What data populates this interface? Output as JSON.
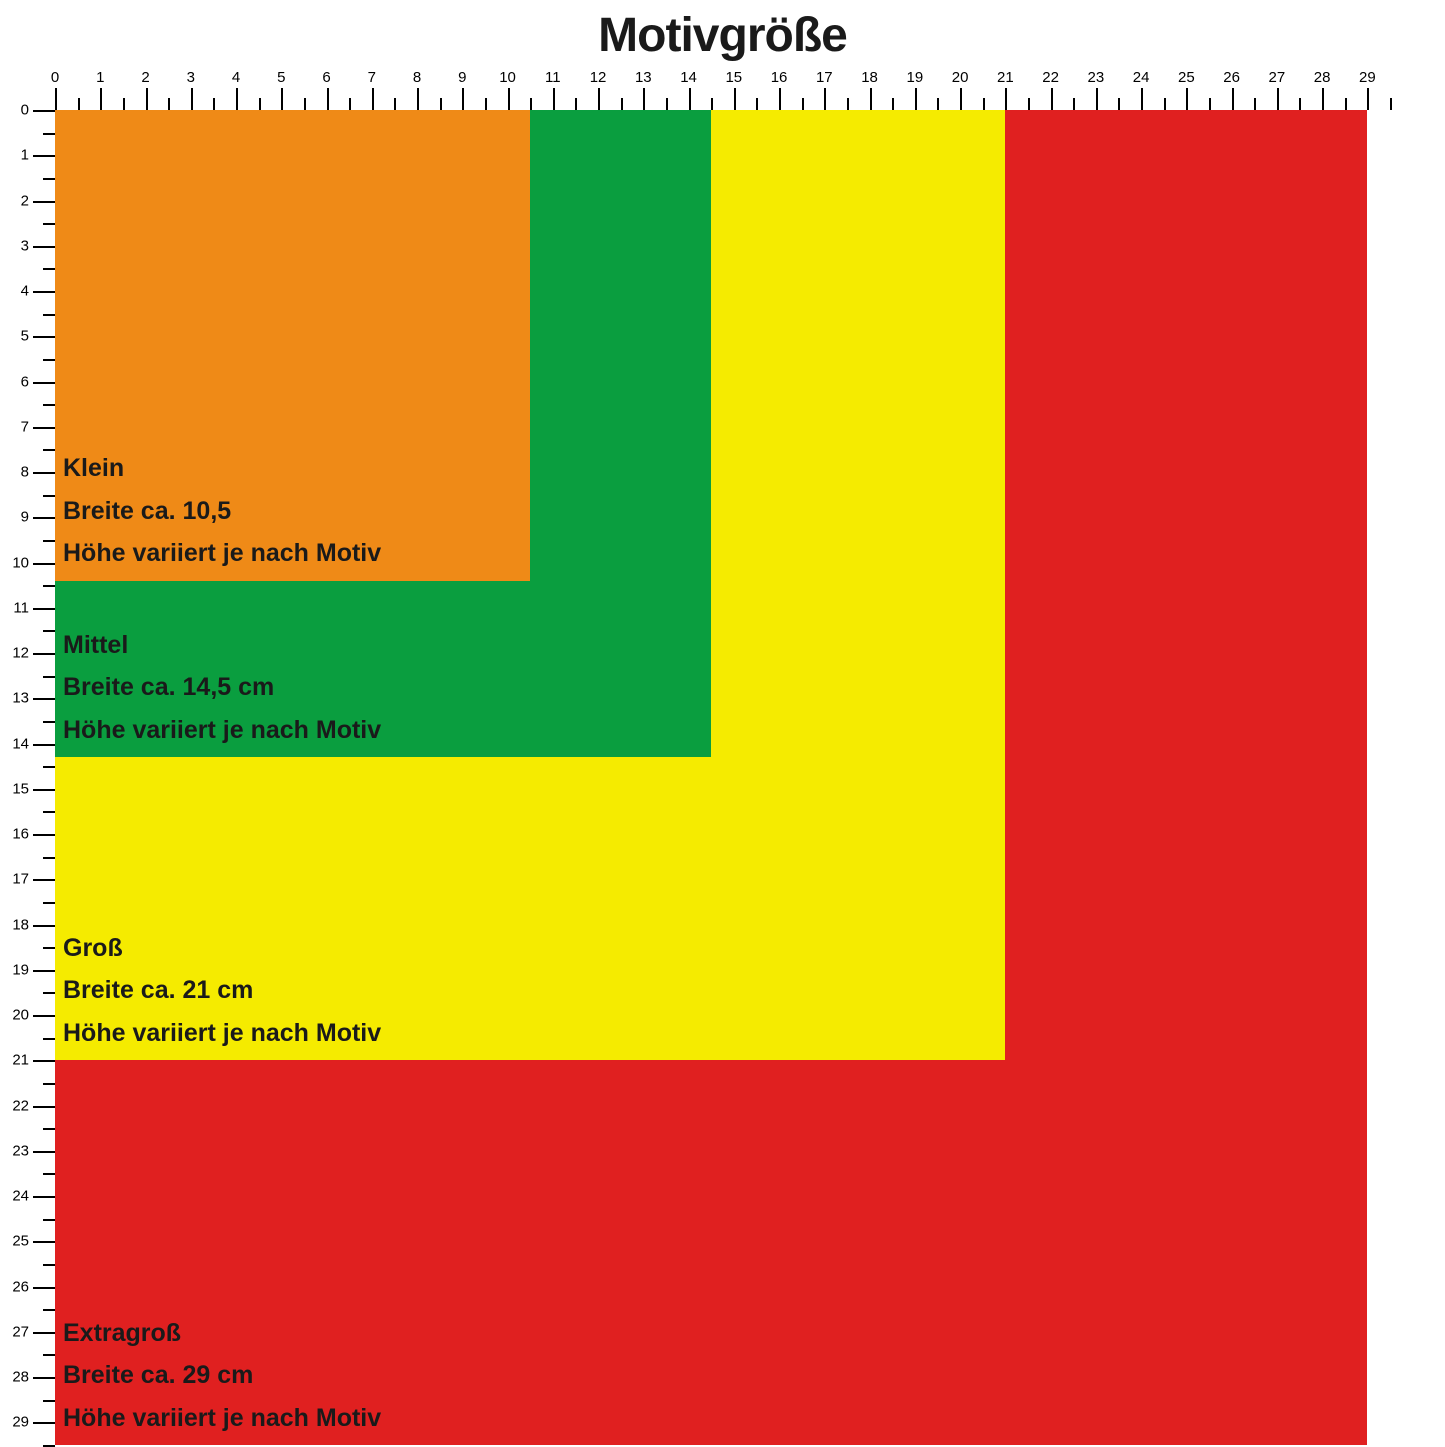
{
  "title": "Motivgröße",
  "ruler": {
    "max": 29.5,
    "major_step": 1,
    "label_fontsize": 15,
    "tick_color": "#000000"
  },
  "boxes": [
    {
      "id": "extragross",
      "name": "Extragroß",
      "width_cm": 29,
      "height_cm": 29.5,
      "color": "#e02020",
      "label_title": "Extragroß",
      "label_width": "Breite ca. 29 cm",
      "label_height": "Höhe variiert je nach Motiv"
    },
    {
      "id": "gross",
      "name": "Groß",
      "width_cm": 21,
      "height_cm": 21,
      "color": "#f5eb00",
      "label_title": "Groß",
      "label_width": "Breite ca. 21 cm",
      "label_height": "Höhe variiert je nach Motiv"
    },
    {
      "id": "mittel",
      "name": "Mittel",
      "width_cm": 14.5,
      "height_cm": 14.3,
      "color": "#0a9e3f",
      "label_title": "Mittel",
      "label_width": "Breite ca. 14,5 cm",
      "label_height": "Höhe variiert je nach Motiv"
    },
    {
      "id": "klein",
      "name": "Klein",
      "width_cm": 10.5,
      "height_cm": 10.4,
      "color": "#ef8a17",
      "label_title": "Klein",
      "label_width": "Breite ca. 10,5",
      "label_height": "Höhe variiert je nach Motiv"
    }
  ],
  "style": {
    "background": "#ffffff",
    "title_fontsize": 48,
    "title_color": "#1a1a1a",
    "label_fontsize": 25,
    "label_color": "#1a1a1a",
    "font_family": "Arial Black"
  }
}
